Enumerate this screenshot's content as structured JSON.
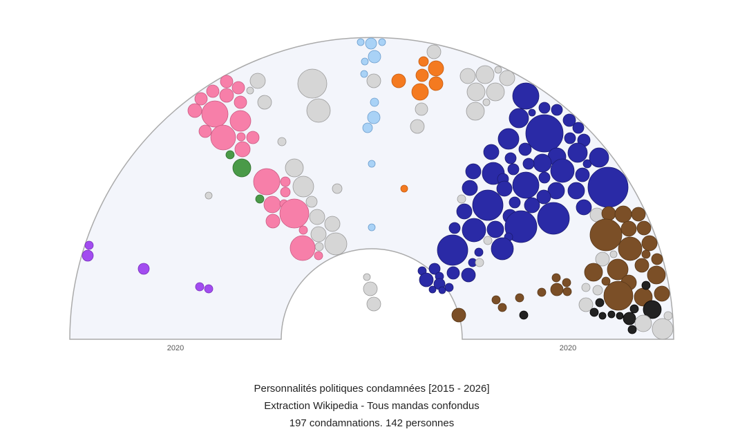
{
  "axis_labels": [
    "2020",
    "2020"
  ],
  "caption": [
    "Personnalités politiques condamnées [2015 - 2026]",
    "Extraction Wikipedia - Tous mandas confondus",
    "197 condamnations. 142 personnes"
  ]
}
